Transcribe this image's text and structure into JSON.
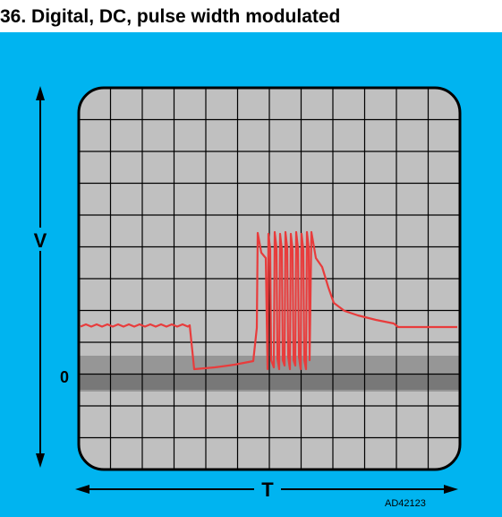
{
  "title": "36. Digital, DC, pulse width modulated",
  "axis": {
    "vertical_label": "V",
    "horizontal_label": "T",
    "zero_label": "0"
  },
  "figure_code": "AD42123",
  "colors": {
    "background": "#00b4f0",
    "screen": "#c0c0c0",
    "grid": "#000000",
    "zero_band_light": "#969696",
    "zero_band_dark": "#787878",
    "trace": "#e83c3c"
  }
}
